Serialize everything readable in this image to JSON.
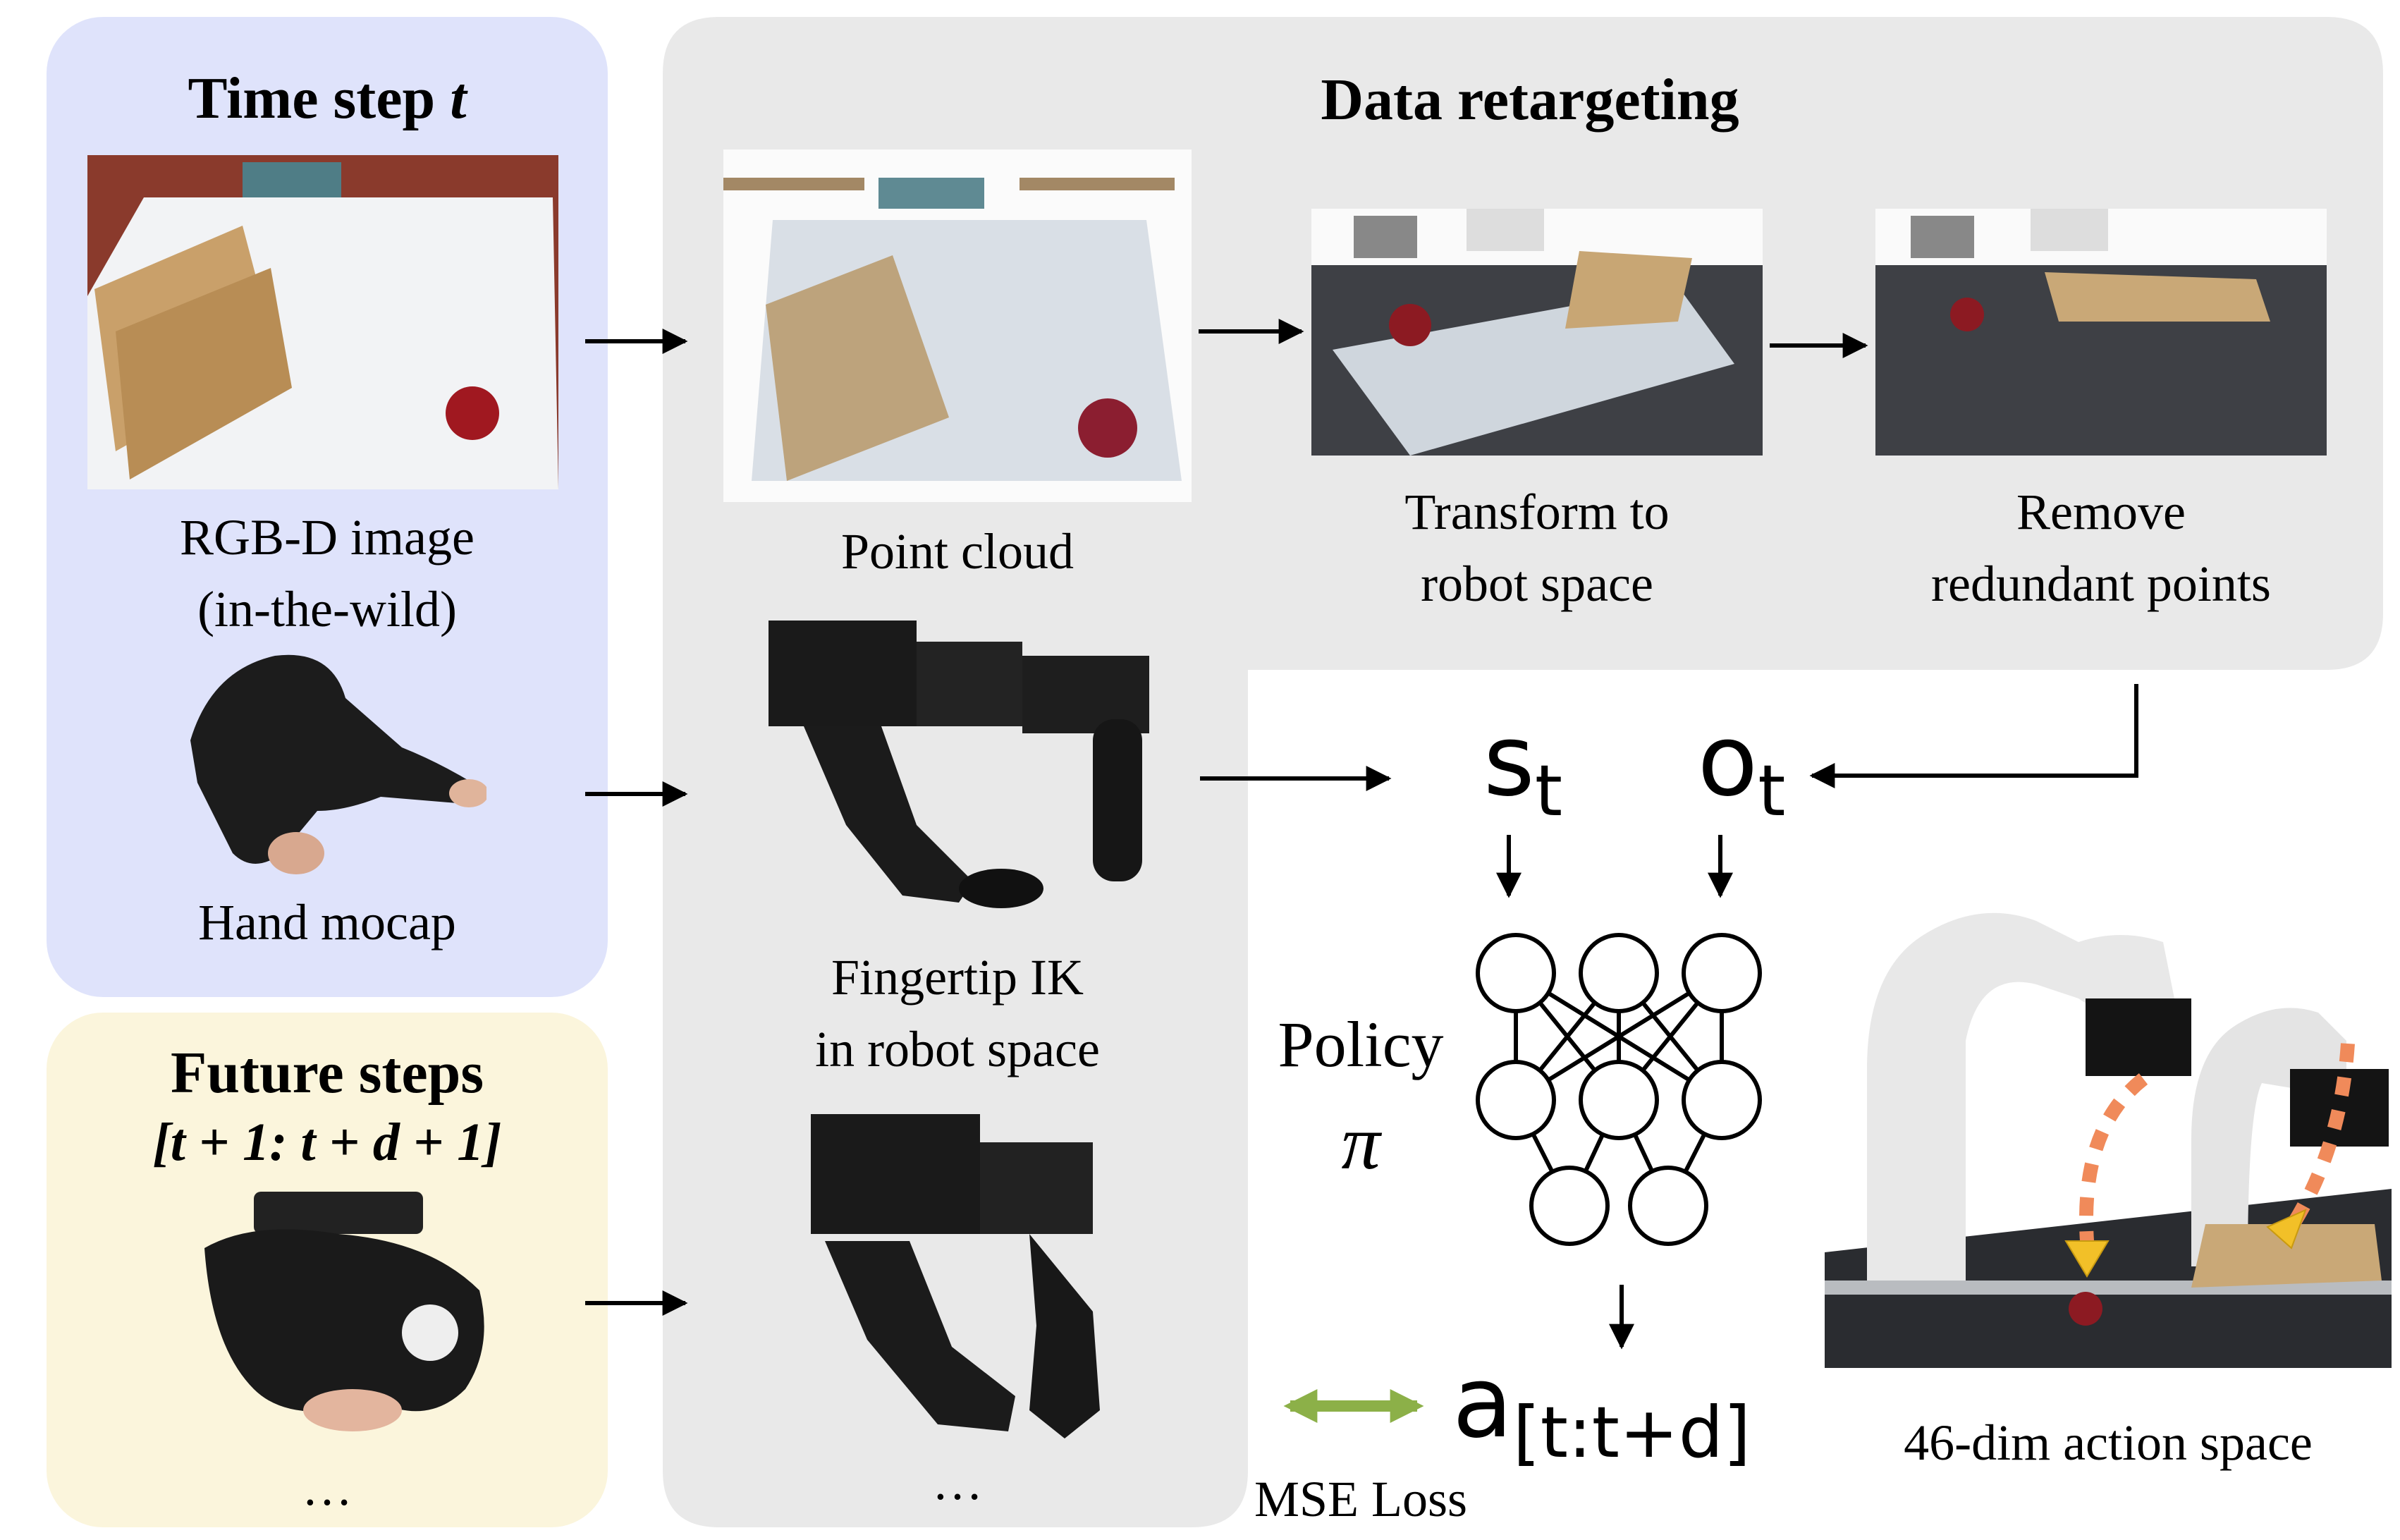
{
  "panels": {
    "time_step": {
      "title": "Time step ",
      "title_var": "t",
      "color": "#dfe3fb"
    },
    "future_steps": {
      "title": "Future steps",
      "range": "[t + 1: t + d + 1]",
      "color": "#fbf5dc"
    },
    "retargeting": {
      "title": "Data retargeting",
      "color": "#e9e9e9"
    }
  },
  "labels": {
    "rgbd_line1": "RGB-D image",
    "rgbd_line2": "(in-the-wild)",
    "hand_mocap": "Hand mocap",
    "future_ellipsis": "…",
    "point_cloud": "Point cloud",
    "transform_line1": "Transform to",
    "transform_line2": "robot space",
    "remove_line1": "Remove",
    "remove_line2": "redundant points",
    "fingertip_line1": "Fingertip IK",
    "fingertip_line2": "in robot space",
    "robot_ellipsis": "…",
    "policy_word": "Policy",
    "policy_symbol": "π",
    "state_symbol": "s",
    "state_sub": "t",
    "obs_symbol": "o",
    "obs_sub": "t",
    "action_symbol": "a",
    "action_sub": "[t:t+d]",
    "mse_loss": "MSE Loss",
    "action_space": "46-dim action space"
  },
  "icons": {
    "rgbd": "rgbd-scene-image",
    "hand": "hand-glove-image",
    "future_hand": "hand-pinch-image",
    "point_cloud": "point-cloud-image",
    "transform": "robot-space-cloud-image",
    "remove": "filtered-cloud-image",
    "robot_hand": "robot-hand-image",
    "robot_hand_future": "robot-hand-pinch-image",
    "robot_arms": "dual-robot-arms-image"
  },
  "colors": {
    "arrow": "#000000",
    "mse_arrow": "#8cb048",
    "trajectory_dash": "#f08a5a",
    "trajectory_head": "#f2c028"
  }
}
